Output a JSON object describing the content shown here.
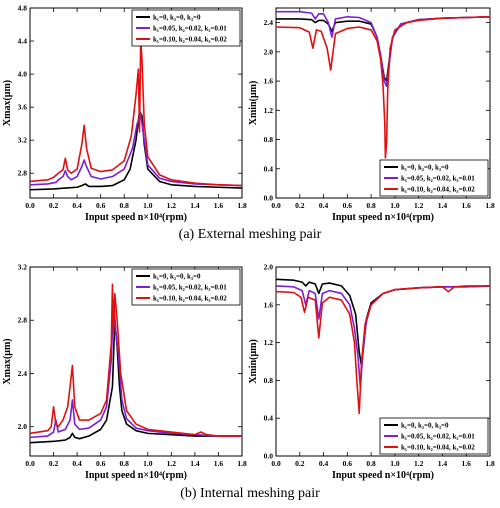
{
  "captions": {
    "top": "(a) External meshing pair",
    "bottom": "(b) Internal meshing pair"
  },
  "legend": [
    {
      "label": "k₁=0,    k₂=0,    k₃=0",
      "color": "#000000"
    },
    {
      "label": "k₁=0.05, k₂=0.02, k₃=0.01",
      "color": "#7a1fd6"
    },
    {
      "label": "k₁=0.10, k₂=0.04, k₃=0.02",
      "color": "#e01010"
    }
  ],
  "chart_data": [
    {
      "id": "ext_xmax",
      "type": "line",
      "xlabel": "Input speed  n×10⁴(rpm)",
      "ylabel": "Xmax(μm)",
      "xlim": [
        0,
        1.8
      ],
      "ylim": [
        2.5,
        4.8
      ],
      "xticks": [
        "0.0",
        "0.2",
        "0.4",
        "0.6",
        "0.8",
        "1.0",
        "1.2",
        "1.4",
        "1.6",
        "1.8"
      ],
      "yticks": [
        "2.8",
        "3.2",
        "3.6",
        "4.0",
        "4.4",
        "4.8"
      ],
      "legend_position": "top-right",
      "series": [
        {
          "name": "k₁=0,    k₂=0,    k₃=0",
          "color": "#000000",
          "x": [
            0,
            0.2,
            0.3,
            0.4,
            0.44,
            0.47,
            0.5,
            0.6,
            0.7,
            0.8,
            0.85,
            0.9,
            0.93,
            0.95,
            0.97,
            1.0,
            1.1,
            1.2,
            1.4,
            1.6,
            1.8
          ],
          "y": [
            2.6,
            2.61,
            2.62,
            2.63,
            2.65,
            2.67,
            2.64,
            2.64,
            2.65,
            2.72,
            2.85,
            3.2,
            3.55,
            3.5,
            3.15,
            2.85,
            2.7,
            2.66,
            2.64,
            2.63,
            2.62
          ]
        },
        {
          "name": "k₁=0.05, k₂=0.02, k₃=0.01",
          "color": "#7a1fd6",
          "x": [
            0,
            0.15,
            0.22,
            0.25,
            0.28,
            0.3,
            0.32,
            0.35,
            0.4,
            0.44,
            0.46,
            0.48,
            0.52,
            0.6,
            0.7,
            0.8,
            0.87,
            0.91,
            0.94,
            0.97,
            1.0,
            1.1,
            1.2,
            1.4,
            1.6,
            1.8
          ],
          "y": [
            2.66,
            2.67,
            2.69,
            2.73,
            2.76,
            2.83,
            2.76,
            2.72,
            2.76,
            2.88,
            2.96,
            2.88,
            2.76,
            2.73,
            2.76,
            2.85,
            3.1,
            3.4,
            3.52,
            3.2,
            2.9,
            2.74,
            2.7,
            2.67,
            2.66,
            2.65
          ]
        },
        {
          "name": "k₁=0.10, k₂=0.04, k₃=0.02",
          "color": "#e01010",
          "x": [
            0,
            0.15,
            0.2,
            0.24,
            0.28,
            0.3,
            0.32,
            0.35,
            0.4,
            0.44,
            0.46,
            0.48,
            0.52,
            0.6,
            0.7,
            0.8,
            0.86,
            0.9,
            0.92,
            0.93,
            0.94,
            0.95,
            0.97,
            1.0,
            1.1,
            1.2,
            1.4,
            1.6,
            1.8
          ],
          "y": [
            2.7,
            2.72,
            2.75,
            2.8,
            2.84,
            2.98,
            2.84,
            2.8,
            2.85,
            3.15,
            3.38,
            3.1,
            2.86,
            2.82,
            2.84,
            2.95,
            3.25,
            3.75,
            4.06,
            3.3,
            4.4,
            4.2,
            3.4,
            3.0,
            2.78,
            2.72,
            2.68,
            2.66,
            2.65
          ]
        }
      ]
    },
    {
      "id": "ext_xmin",
      "type": "line",
      "xlabel": "Input speed  n×10⁴(rpm)",
      "ylabel": "Xmin(μm)",
      "xlim": [
        0,
        1.8
      ],
      "ylim": [
        0.0,
        2.6
      ],
      "xticks": [
        "0.0",
        "0.2",
        "0.4",
        "0.6",
        "0.8",
        "1.0",
        "1.2",
        "1.4",
        "1.6",
        "1.8"
      ],
      "yticks": [
        "0.0",
        "0.4",
        "0.8",
        "1.2",
        "1.6",
        "2.0",
        "2.4"
      ],
      "legend_position": "bottom-right",
      "series": [
        {
          "name": "k₁=0,    k₂=0,    k₃=0",
          "color": "#000000",
          "x": [
            0,
            0.2,
            0.3,
            0.33,
            0.36,
            0.4,
            0.44,
            0.47,
            0.5,
            0.6,
            0.7,
            0.8,
            0.85,
            0.88,
            0.91,
            0.93,
            0.95,
            0.98,
            1.05,
            1.2,
            1.4,
            1.6,
            1.8
          ],
          "y": [
            2.45,
            2.45,
            2.44,
            2.4,
            2.43,
            2.43,
            2.38,
            2.28,
            2.4,
            2.42,
            2.42,
            2.38,
            2.2,
            1.95,
            1.65,
            1.6,
            1.85,
            2.2,
            2.38,
            2.44,
            2.46,
            2.47,
            2.48
          ]
        },
        {
          "name": "k₁=0.05, k₂=0.02, k₃=0.01",
          "color": "#7a1fd6",
          "x": [
            0,
            0.2,
            0.3,
            0.33,
            0.36,
            0.4,
            0.44,
            0.47,
            0.5,
            0.6,
            0.7,
            0.8,
            0.85,
            0.88,
            0.91,
            0.93,
            0.95,
            0.98,
            1.05,
            1.2,
            1.4,
            1.6,
            1.8
          ],
          "y": [
            2.55,
            2.55,
            2.53,
            2.45,
            2.52,
            2.52,
            2.4,
            2.2,
            2.45,
            2.48,
            2.47,
            2.4,
            2.2,
            1.95,
            1.6,
            1.53,
            1.8,
            2.2,
            2.38,
            2.44,
            2.46,
            2.47,
            2.48
          ]
        },
        {
          "name": "k₁=0.10, k₂=0.04, k₃=0.02",
          "color": "#e01010",
          "x": [
            0,
            0.2,
            0.28,
            0.31,
            0.34,
            0.38,
            0.43,
            0.46,
            0.5,
            0.6,
            0.7,
            0.8,
            0.85,
            0.88,
            0.9,
            0.915,
            0.92,
            0.93,
            0.94,
            0.96,
            1.0,
            1.1,
            1.2,
            1.4,
            1.6,
            1.8
          ],
          "y": [
            2.34,
            2.33,
            2.27,
            2.05,
            2.3,
            2.28,
            2.05,
            1.75,
            2.25,
            2.32,
            2.34,
            2.3,
            2.15,
            1.9,
            1.55,
            1.02,
            0.55,
            0.75,
            1.5,
            2.05,
            2.3,
            2.4,
            2.43,
            2.46,
            2.47,
            2.48
          ]
        }
      ]
    },
    {
      "id": "int_xmax",
      "type": "line",
      "xlabel": "Input speed  n×10⁴(rpm)",
      "ylabel": "Xmax(μm)",
      "xlim": [
        0,
        1.8
      ],
      "ylim": [
        1.78,
        3.2
      ],
      "xticks": [
        "0.0",
        "0.2",
        "0.4",
        "0.6",
        "0.8",
        "1.0",
        "1.2",
        "1.4",
        "1.6",
        "1.8"
      ],
      "yticks": [
        "2.0",
        "2.4",
        "2.8",
        "3.2"
      ],
      "legend_position": "top-right",
      "series": [
        {
          "name": "k₁=0,    k₂=0,    k₃=0",
          "color": "#000000",
          "x": [
            0,
            0.2,
            0.3,
            0.34,
            0.36,
            0.38,
            0.42,
            0.5,
            0.6,
            0.65,
            0.7,
            0.72,
            0.74,
            0.76,
            0.78,
            0.82,
            0.9,
            1.0,
            1.2,
            1.4,
            1.6,
            1.8
          ],
          "y": [
            1.88,
            1.89,
            1.9,
            1.92,
            1.95,
            1.92,
            1.91,
            1.93,
            1.98,
            2.05,
            2.3,
            2.8,
            2.6,
            2.3,
            2.12,
            2.02,
            1.97,
            1.95,
            1.94,
            1.93,
            1.93,
            1.93
          ]
        },
        {
          "name": "k₁=0.05, k₂=0.02, k₃=0.01",
          "color": "#7a1fd6",
          "x": [
            0,
            0.15,
            0.2,
            0.22,
            0.24,
            0.3,
            0.34,
            0.36,
            0.38,
            0.42,
            0.5,
            0.6,
            0.65,
            0.69,
            0.71,
            0.73,
            0.75,
            0.78,
            0.82,
            0.9,
            1.0,
            1.2,
            1.4,
            1.6,
            1.8
          ],
          "y": [
            1.92,
            1.93,
            1.96,
            2.05,
            1.96,
            1.98,
            2.05,
            2.2,
            2.02,
            1.98,
            1.99,
            2.05,
            2.15,
            2.5,
            2.95,
            2.7,
            2.55,
            2.2,
            2.06,
            1.99,
            1.97,
            1.95,
            1.94,
            1.93,
            1.93
          ]
        },
        {
          "name": "k₁=0.10, k₂=0.04, k₃=0.02",
          "color": "#e01010",
          "x": [
            0,
            0.15,
            0.18,
            0.2,
            0.22,
            0.24,
            0.28,
            0.32,
            0.34,
            0.36,
            0.38,
            0.42,
            0.5,
            0.6,
            0.65,
            0.69,
            0.7,
            0.71,
            0.72,
            0.74,
            0.77,
            0.82,
            0.9,
            1.0,
            1.2,
            1.4,
            1.45,
            1.5,
            1.6,
            1.8
          ],
          "y": [
            1.95,
            1.97,
            2.0,
            2.15,
            2.02,
            2.0,
            2.05,
            2.15,
            2.3,
            2.46,
            2.15,
            2.05,
            2.05,
            2.1,
            2.2,
            2.62,
            3.07,
            2.7,
            3.0,
            2.8,
            2.4,
            2.12,
            2.02,
            1.98,
            1.96,
            1.94,
            1.96,
            1.94,
            1.93,
            1.93
          ]
        }
      ]
    },
    {
      "id": "int_xmin",
      "type": "line",
      "xlabel": "Input speed  n×10⁴(rpm)",
      "ylabel": "Xmin(μm)",
      "xlim": [
        0,
        1.8
      ],
      "ylim": [
        0.0,
        2.0
      ],
      "xticks": [
        "0.0",
        "0.2",
        "0.4",
        "0.6",
        "0.8",
        "1.0",
        "1.2",
        "1.4",
        "1.6",
        "1.8"
      ],
      "yticks": [
        "0.0",
        "0.4",
        "0.8",
        "1.2",
        "1.6",
        "2.0"
      ],
      "legend_position": "bottom-right",
      "series": [
        {
          "name": "k₁=0,    k₂=0,    k₃=0",
          "color": "#000000",
          "x": [
            0,
            0.15,
            0.22,
            0.25,
            0.28,
            0.33,
            0.36,
            0.39,
            0.45,
            0.55,
            0.62,
            0.67,
            0.7,
            0.72,
            0.74,
            0.76,
            0.8,
            0.9,
            1.0,
            1.2,
            1.4,
            1.6,
            1.8
          ],
          "y": [
            1.87,
            1.86,
            1.84,
            1.8,
            1.84,
            1.82,
            1.72,
            1.82,
            1.83,
            1.8,
            1.7,
            1.5,
            1.1,
            0.95,
            1.2,
            1.45,
            1.62,
            1.72,
            1.76,
            1.78,
            1.79,
            1.79,
            1.8
          ]
        },
        {
          "name": "k₁=0.05, k₂=0.02, k₃=0.01",
          "color": "#7a1fd6",
          "x": [
            0,
            0.15,
            0.22,
            0.25,
            0.28,
            0.33,
            0.36,
            0.39,
            0.45,
            0.55,
            0.62,
            0.66,
            0.69,
            0.71,
            0.73,
            0.76,
            0.8,
            0.9,
            1.0,
            1.2,
            1.4,
            1.6,
            1.8
          ],
          "y": [
            1.8,
            1.79,
            1.75,
            1.6,
            1.75,
            1.72,
            1.45,
            1.72,
            1.75,
            1.72,
            1.6,
            1.35,
            1.05,
            0.72,
            1.1,
            1.42,
            1.6,
            1.72,
            1.76,
            1.78,
            1.79,
            1.79,
            1.8
          ]
        },
        {
          "name": "k₁=0.10, k₂=0.04, k₃=0.02",
          "color": "#e01010",
          "x": [
            0,
            0.15,
            0.21,
            0.24,
            0.27,
            0.33,
            0.36,
            0.39,
            0.45,
            0.55,
            0.62,
            0.66,
            0.68,
            0.7,
            0.72,
            0.75,
            0.8,
            0.9,
            1.0,
            1.2,
            1.4,
            1.45,
            1.5,
            1.6,
            1.8
          ],
          "y": [
            1.74,
            1.73,
            1.68,
            1.52,
            1.68,
            1.65,
            1.25,
            1.62,
            1.68,
            1.65,
            1.5,
            1.2,
            0.8,
            0.45,
            1.0,
            1.4,
            1.6,
            1.72,
            1.76,
            1.78,
            1.79,
            1.74,
            1.79,
            1.8,
            1.8
          ]
        }
      ]
    }
  ]
}
